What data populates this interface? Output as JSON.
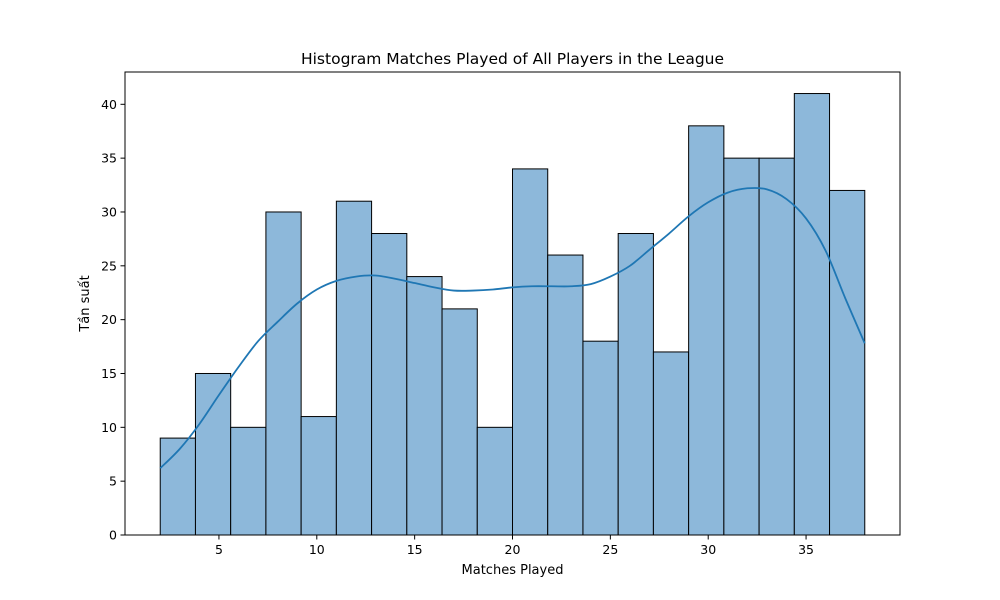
{
  "chart_data": {
    "type": "bar",
    "title": "Histogram Matches Played of All Players in the League",
    "xlabel": "Matches Played",
    "ylabel": "Tần suất",
    "xlim": [
      0.2,
      39.8
    ],
    "ylim": [
      0,
      43
    ],
    "xticks": [
      5,
      10,
      15,
      20,
      25,
      30,
      35
    ],
    "yticks": [
      0,
      5,
      10,
      15,
      20,
      25,
      30,
      35,
      40
    ],
    "bins": {
      "start": 2,
      "width": 1.8,
      "counts": [
        9,
        15,
        10,
        30,
        11,
        31,
        28,
        24,
        21,
        10,
        34,
        26,
        18,
        28,
        17,
        38,
        35,
        35,
        41,
        32
      ]
    },
    "kde": {
      "x": [
        2,
        3,
        4,
        5,
        6,
        7,
        8,
        9,
        10,
        11,
        12,
        13,
        14,
        15,
        16,
        17,
        18,
        19,
        20,
        21,
        22,
        23,
        24,
        25,
        26,
        27,
        28,
        29,
        30,
        31,
        32,
        33,
        34,
        35,
        36,
        37,
        38
      ],
      "y": [
        6.2,
        8.0,
        10.3,
        13.0,
        15.6,
        18.0,
        19.8,
        21.5,
        22.8,
        23.6,
        24.0,
        24.1,
        23.8,
        23.4,
        23.0,
        22.7,
        22.7,
        22.8,
        23.0,
        23.1,
        23.1,
        23.1,
        23.3,
        24.0,
        25.0,
        26.5,
        28.0,
        29.6,
        30.9,
        31.8,
        32.2,
        32.1,
        31.2,
        29.4,
        26.4,
        22.0,
        17.8
      ]
    },
    "colors": {
      "bar_fill": "#8db8da",
      "bar_edge": "#000000",
      "kde_line": "#1f77b4"
    }
  }
}
